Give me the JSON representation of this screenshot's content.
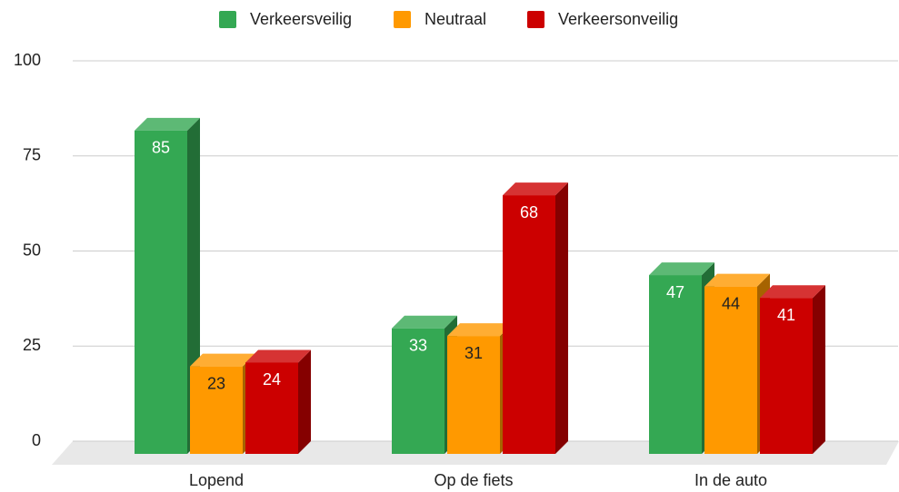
{
  "chart_data": {
    "type": "bar3d",
    "categories": [
      "Lopend",
      "Op de fiets",
      "In de auto"
    ],
    "series": [
      {
        "name": "Verkeersveilig",
        "color": "#34a853",
        "values": [
          85,
          33,
          47
        ]
      },
      {
        "name": "Neutraal",
        "color": "#ff9900",
        "values": [
          23,
          31,
          44
        ]
      },
      {
        "name": "Verkeersonveilig",
        "color": "#cc0000",
        "values": [
          24,
          68,
          41
        ]
      }
    ],
    "ylim": [
      0,
      100
    ],
    "yticks": [
      0,
      25,
      50,
      75,
      100
    ],
    "grid": true,
    "legend": "top"
  }
}
